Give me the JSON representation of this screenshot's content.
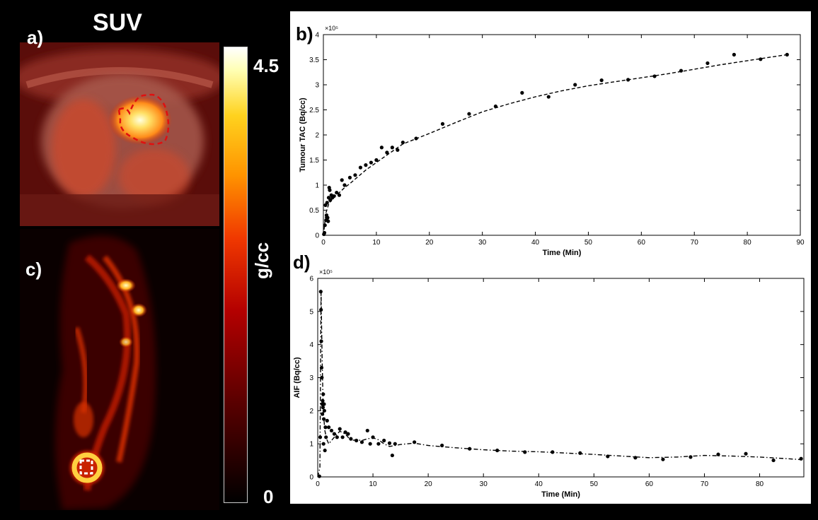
{
  "figure": {
    "suv_title": "SUV",
    "panel_a_label": "a)",
    "panel_b_label": "b)",
    "panel_c_label": "c)",
    "panel_d_label": "d)",
    "colorbar": {
      "max_label": "4.5",
      "min_label": "0",
      "unit_label": "g/cc"
    }
  },
  "chart_data": [
    {
      "type": "scatter",
      "title": "",
      "xlabel": "Time (Min)",
      "ylabel": "Tumour TAC (Bq/cc)",
      "y_exponent_label": "×10⁵",
      "xlim": [
        0,
        90
      ],
      "ylim": [
        0,
        4
      ],
      "xticks": [
        "0",
        "10",
        "20",
        "30",
        "40",
        "50",
        "60",
        "70",
        "80",
        "90"
      ],
      "yticks": [
        "0",
        "0.5",
        "1",
        "1.5",
        "2",
        "2.5",
        "3",
        "3.5",
        "4"
      ],
      "series": [
        {
          "name": "measured",
          "style": "points",
          "x": [
            0.1,
            0.2,
            0.3,
            0.4,
            0.5,
            0.6,
            0.7,
            0.8,
            0.9,
            1.0,
            1.1,
            1.2,
            1.3,
            1.5,
            1.7,
            2,
            2.5,
            3,
            3.5,
            4,
            5,
            6,
            7,
            8,
            9,
            10,
            11,
            12,
            13,
            14,
            15,
            17.5,
            22.5,
            27.5,
            32.5,
            37.5,
            42.5,
            47.5,
            52.5,
            57.5,
            62.5,
            67.5,
            72.5,
            77.5,
            82.5,
            87.5
          ],
          "y": [
            0.02,
            0.05,
            0.2,
            0.6,
            0.3,
            0.4,
            0.65,
            0.35,
            0.28,
            0.75,
            0.95,
            0.9,
            0.7,
            0.8,
            0.75,
            0.78,
            0.85,
            0.8,
            1.1,
            1.0,
            1.15,
            1.2,
            1.35,
            1.4,
            1.45,
            1.5,
            1.75,
            1.65,
            1.75,
            1.7,
            1.85,
            1.93,
            2.22,
            2.42,
            2.57,
            2.84,
            2.76,
            3.0,
            3.09,
            3.1,
            3.17,
            3.28,
            3.43,
            3.6,
            3.51,
            3.6
          ]
        },
        {
          "name": "fit",
          "style": "dashed",
          "x": [
            0,
            0.5,
            1,
            1.5,
            2,
            3,
            4,
            5,
            6,
            8,
            10,
            12,
            15,
            20,
            25,
            30,
            35,
            40,
            45,
            50,
            55,
            60,
            65,
            70,
            75,
            80,
            85,
            87.5
          ],
          "y": [
            0,
            0.45,
            0.62,
            0.7,
            0.76,
            0.85,
            0.95,
            1.03,
            1.12,
            1.3,
            1.45,
            1.6,
            1.82,
            2.03,
            2.25,
            2.46,
            2.62,
            2.76,
            2.88,
            2.98,
            3.06,
            3.14,
            3.22,
            3.31,
            3.4,
            3.48,
            3.56,
            3.6
          ]
        }
      ]
    },
    {
      "type": "scatter",
      "title": "",
      "xlabel": "Time (Min)",
      "ylabel": "AIF (Bq/cc)",
      "y_exponent_label": "×10⁵",
      "xlim": [
        0,
        88
      ],
      "ylim": [
        0,
        6
      ],
      "xticks": [
        "0",
        "10",
        "20",
        "30",
        "40",
        "50",
        "60",
        "70",
        "80"
      ],
      "yticks": [
        "0",
        "1",
        "2",
        "3",
        "4",
        "5",
        "6"
      ],
      "series": [
        {
          "name": "measured",
          "style": "points",
          "x": [
            0.3,
            0.45,
            0.55,
            0.6,
            0.65,
            0.7,
            0.75,
            0.8,
            0.85,
            0.9,
            0.95,
            1.0,
            1.05,
            1.1,
            1.15,
            1.2,
            1.3,
            1.4,
            1.5,
            1.7,
            2,
            2.5,
            3,
            3.5,
            4,
            4.5,
            5,
            5.5,
            6,
            7,
            8,
            9,
            9.5,
            10,
            11,
            12,
            13,
            13.5,
            14,
            17.5,
            22.5,
            27.5,
            32.5,
            37.5,
            42.5,
            47.5,
            52.5,
            57.5,
            62.5,
            67.5,
            72.5,
            77.5,
            82.5,
            87.5
          ],
          "y": [
            0.02,
            1.2,
            5.6,
            5.05,
            4.1,
            3.3,
            3.0,
            2.2,
            1.9,
            2.3,
            2.1,
            2.5,
            1.0,
            1.75,
            2.2,
            2.0,
            0.8,
            1.5,
            1.2,
            1.7,
            1.5,
            1.4,
            1.3,
            1.2,
            1.45,
            1.2,
            1.35,
            1.3,
            1.15,
            1.1,
            1.05,
            1.4,
            1.0,
            1.2,
            1.0,
            1.1,
            1.02,
            0.65,
            1.0,
            1.05,
            0.95,
            0.85,
            0.8,
            0.75,
            0.75,
            0.72,
            0.62,
            0.58,
            0.53,
            0.6,
            0.68,
            0.7,
            0.5,
            0.55
          ]
        },
        {
          "name": "fit",
          "style": "dashdot",
          "x": [
            0,
            0.4,
            0.6,
            0.8,
            1,
            1.3,
            1.6,
            2,
            3,
            4,
            5,
            6,
            7,
            8,
            9,
            10,
            11,
            12,
            13,
            14,
            15,
            17.5,
            20,
            25,
            30,
            35,
            40,
            45,
            50,
            55,
            60,
            65,
            70,
            75,
            80,
            85,
            87.5
          ],
          "y": [
            0,
            0.3,
            5.6,
            3.6,
            2.0,
            1.4,
            1.15,
            1.0,
            1.2,
            1.38,
            1.3,
            1.1,
            1.12,
            1.1,
            1.15,
            1.18,
            1.12,
            1.0,
            0.92,
            0.95,
            0.98,
            1.02,
            0.95,
            0.88,
            0.82,
            0.78,
            0.76,
            0.72,
            0.68,
            0.63,
            0.58,
            0.6,
            0.65,
            0.63,
            0.6,
            0.55,
            0.52
          ]
        }
      ]
    }
  ]
}
